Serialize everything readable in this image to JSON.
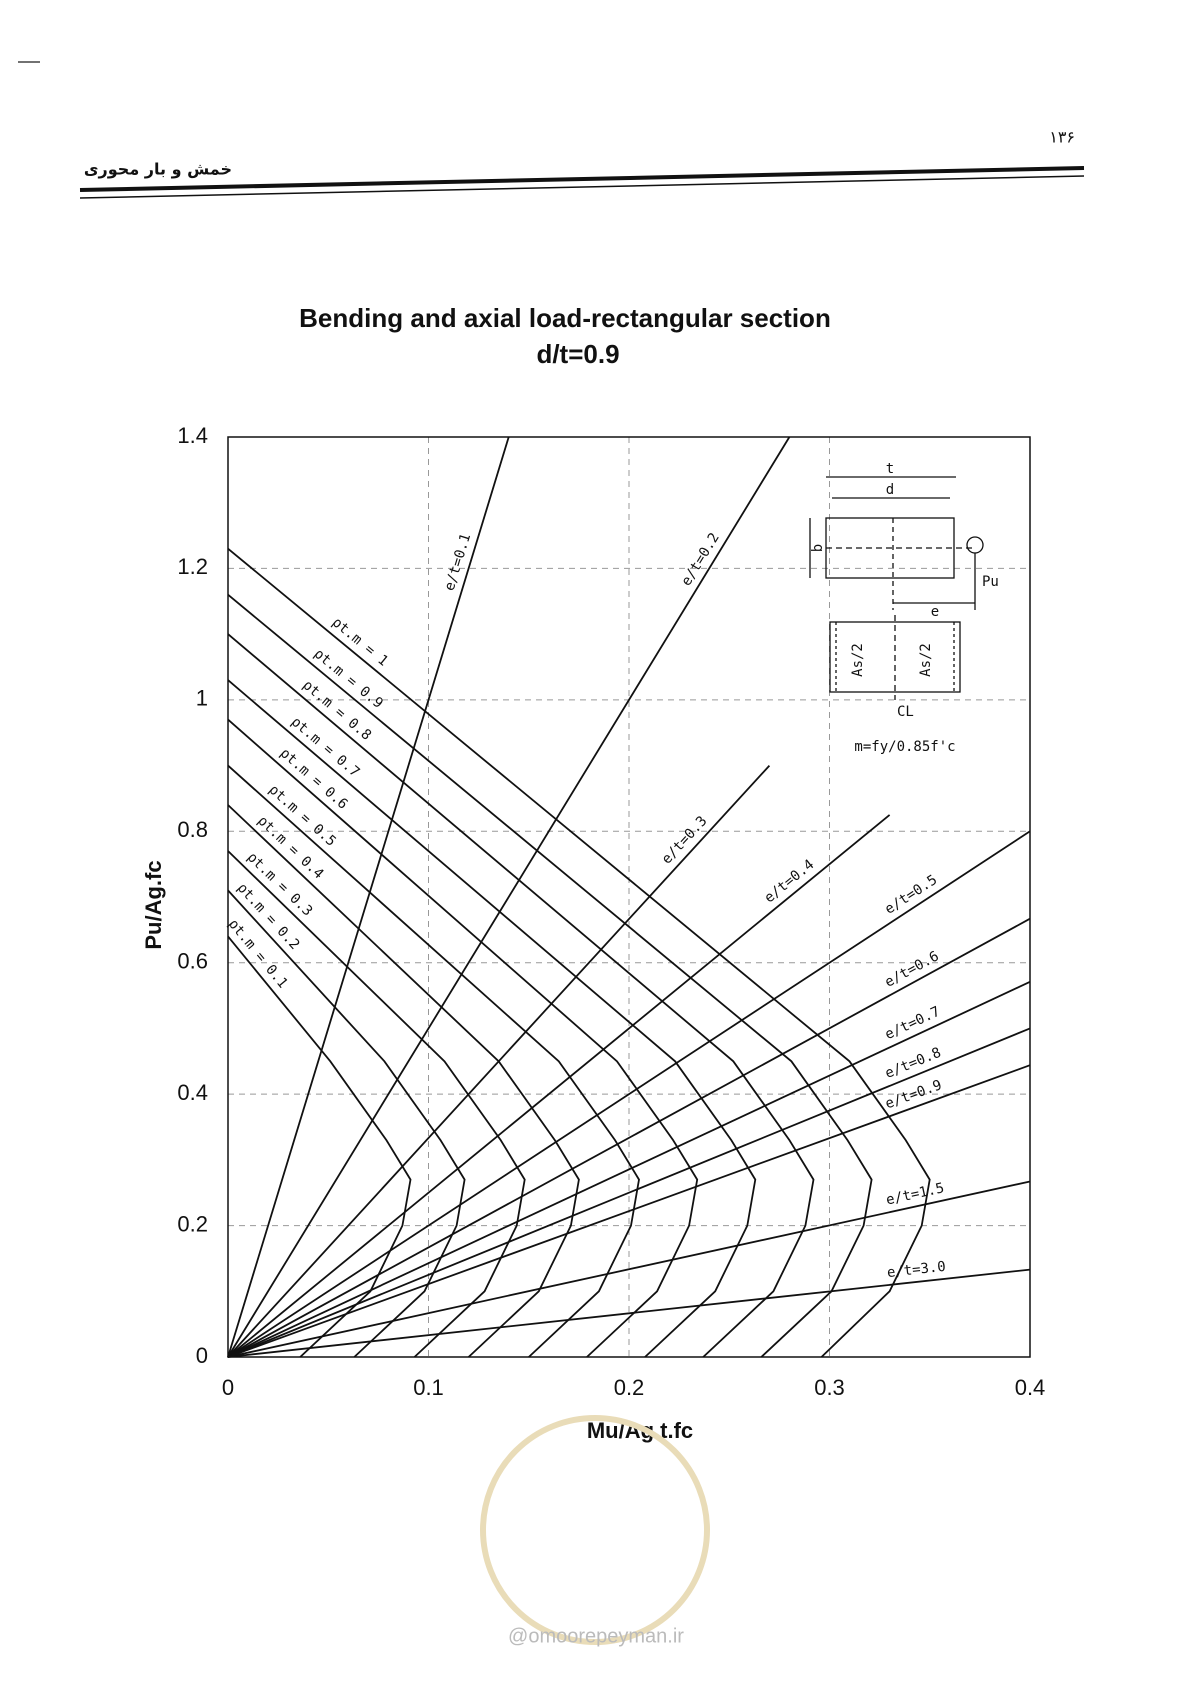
{
  "header": {
    "page_number": "۱۳۶",
    "title": "خمش و بار محوری"
  },
  "chart_data": {
    "type": "line",
    "title": "Bending and axial load-rectangular section",
    "subtitle": "d/t=0.9",
    "x_label": "Mu/Ag.t.fc",
    "y_label": "Pu/Ag.fc",
    "xlim": [
      0,
      0.4
    ],
    "xticks": [
      0,
      0.1,
      0.2,
      0.3,
      0.4
    ],
    "ylim": [
      0,
      1.4
    ],
    "yticks": [
      0,
      0.2,
      0.4,
      0.6,
      0.8,
      1,
      1.2,
      1.4
    ],
    "grid": true,
    "series": [
      {
        "name": "ρt.m = 0.1",
        "color": "#111111",
        "x": [
          0,
          0.051,
          0.079,
          0.091,
          0.087,
          0.071,
          0.036
        ],
        "values": [
          0.64,
          0.45,
          0.33,
          0.27,
          0.2,
          0.1,
          0
        ]
      },
      {
        "name": "ρt.m = 0.2",
        "color": "#111111",
        "x": [
          0,
          0.078,
          0.106,
          0.118,
          0.114,
          0.098,
          0.063
        ],
        "values": [
          0.71,
          0.45,
          0.33,
          0.27,
          0.2,
          0.1,
          0
        ]
      },
      {
        "name": "ρt.m = 0.3",
        "color": "#111111",
        "x": [
          0,
          0.108,
          0.136,
          0.148,
          0.144,
          0.128,
          0.093
        ],
        "values": [
          0.77,
          0.45,
          0.33,
          0.27,
          0.2,
          0.1,
          0
        ]
      },
      {
        "name": "ρt.m = 0.4",
        "color": "#111111",
        "x": [
          0,
          0.135,
          0.163,
          0.175,
          0.171,
          0.155,
          0.12
        ],
        "values": [
          0.84,
          0.45,
          0.33,
          0.27,
          0.2,
          0.1,
          0
        ]
      },
      {
        "name": "ρt.m = 0.5",
        "color": "#111111",
        "x": [
          0,
          0.165,
          0.193,
          0.205,
          0.201,
          0.185,
          0.15
        ],
        "values": [
          0.9,
          0.45,
          0.33,
          0.27,
          0.2,
          0.1,
          0
        ]
      },
      {
        "name": "ρt.m = 0.6",
        "color": "#111111",
        "x": [
          0,
          0.194,
          0.222,
          0.234,
          0.23,
          0.214,
          0.179
        ],
        "values": [
          0.97,
          0.45,
          0.33,
          0.27,
          0.2,
          0.1,
          0
        ]
      },
      {
        "name": "ρt.m = 0.7",
        "color": "#111111",
        "x": [
          0,
          0.223,
          0.251,
          0.263,
          0.259,
          0.243,
          0.208
        ],
        "values": [
          1.03,
          0.45,
          0.33,
          0.27,
          0.2,
          0.1,
          0
        ]
      },
      {
        "name": "ρt.m = 0.8",
        "color": "#111111",
        "x": [
          0,
          0.252,
          0.28,
          0.292,
          0.288,
          0.272,
          0.237
        ],
        "values": [
          1.1,
          0.45,
          0.33,
          0.27,
          0.2,
          0.1,
          0
        ]
      },
      {
        "name": "ρt.m = 0.9",
        "color": "#111111",
        "x": [
          0,
          0.281,
          0.309,
          0.321,
          0.317,
          0.301,
          0.266
        ],
        "values": [
          1.16,
          0.45,
          0.33,
          0.27,
          0.2,
          0.1,
          0
        ]
      },
      {
        "name": "ρt.m = 1",
        "color": "#111111",
        "x": [
          0,
          0.31,
          0.338,
          0.35,
          0.346,
          0.33,
          0.296
        ],
        "values": [
          1.23,
          0.45,
          0.33,
          0.27,
          0.2,
          0.1,
          0
        ]
      },
      {
        "name": "e/t=0.1",
        "color": "#111111",
        "x": [
          0,
          0.14
        ],
        "values": [
          0,
          1.4
        ]
      },
      {
        "name": "e/t=0.2",
        "color": "#111111",
        "x": [
          0,
          0.28
        ],
        "values": [
          0,
          1.4
        ]
      },
      {
        "name": "e/t=0.3",
        "color": "#111111",
        "x": [
          0,
          0.27
        ],
        "values": [
          0,
          0.9
        ]
      },
      {
        "name": "e/t=0.4",
        "color": "#111111",
        "x": [
          0,
          0.33
        ],
        "values": [
          0,
          0.825
        ]
      },
      {
        "name": "e/t=0.5",
        "color": "#111111",
        "x": [
          0,
          0.4
        ],
        "values": [
          0,
          0.8
        ]
      },
      {
        "name": "e/t=0.6",
        "color": "#111111",
        "x": [
          0,
          0.4
        ],
        "values": [
          0,
          0.667
        ]
      },
      {
        "name": "e/t=0.7",
        "color": "#111111",
        "x": [
          0,
          0.4
        ],
        "values": [
          0,
          0.571
        ]
      },
      {
        "name": "e/t=0.8",
        "color": "#111111",
        "x": [
          0,
          0.4
        ],
        "values": [
          0,
          0.5
        ]
      },
      {
        "name": "e/t=0.9",
        "color": "#111111",
        "x": [
          0,
          0.4
        ],
        "values": [
          0,
          0.444
        ]
      },
      {
        "name": "e/t=1.5",
        "color": "#111111",
        "x": [
          0,
          0.4
        ],
        "values": [
          0,
          0.267
        ]
      },
      {
        "name": "e/t=3.0",
        "color": "#111111",
        "x": [
          0,
          0.4
        ],
        "values": [
          0,
          0.133
        ]
      }
    ]
  },
  "inset": {
    "t": "t",
    "d": "d",
    "b": "b",
    "e": "e",
    "load": "Pu",
    "steel_left": "As/2",
    "steel_right": "As/2",
    "centerline": "CL",
    "formula": "m=fy/0.85f'c"
  },
  "watermark": "@omoorepeyman.ir"
}
